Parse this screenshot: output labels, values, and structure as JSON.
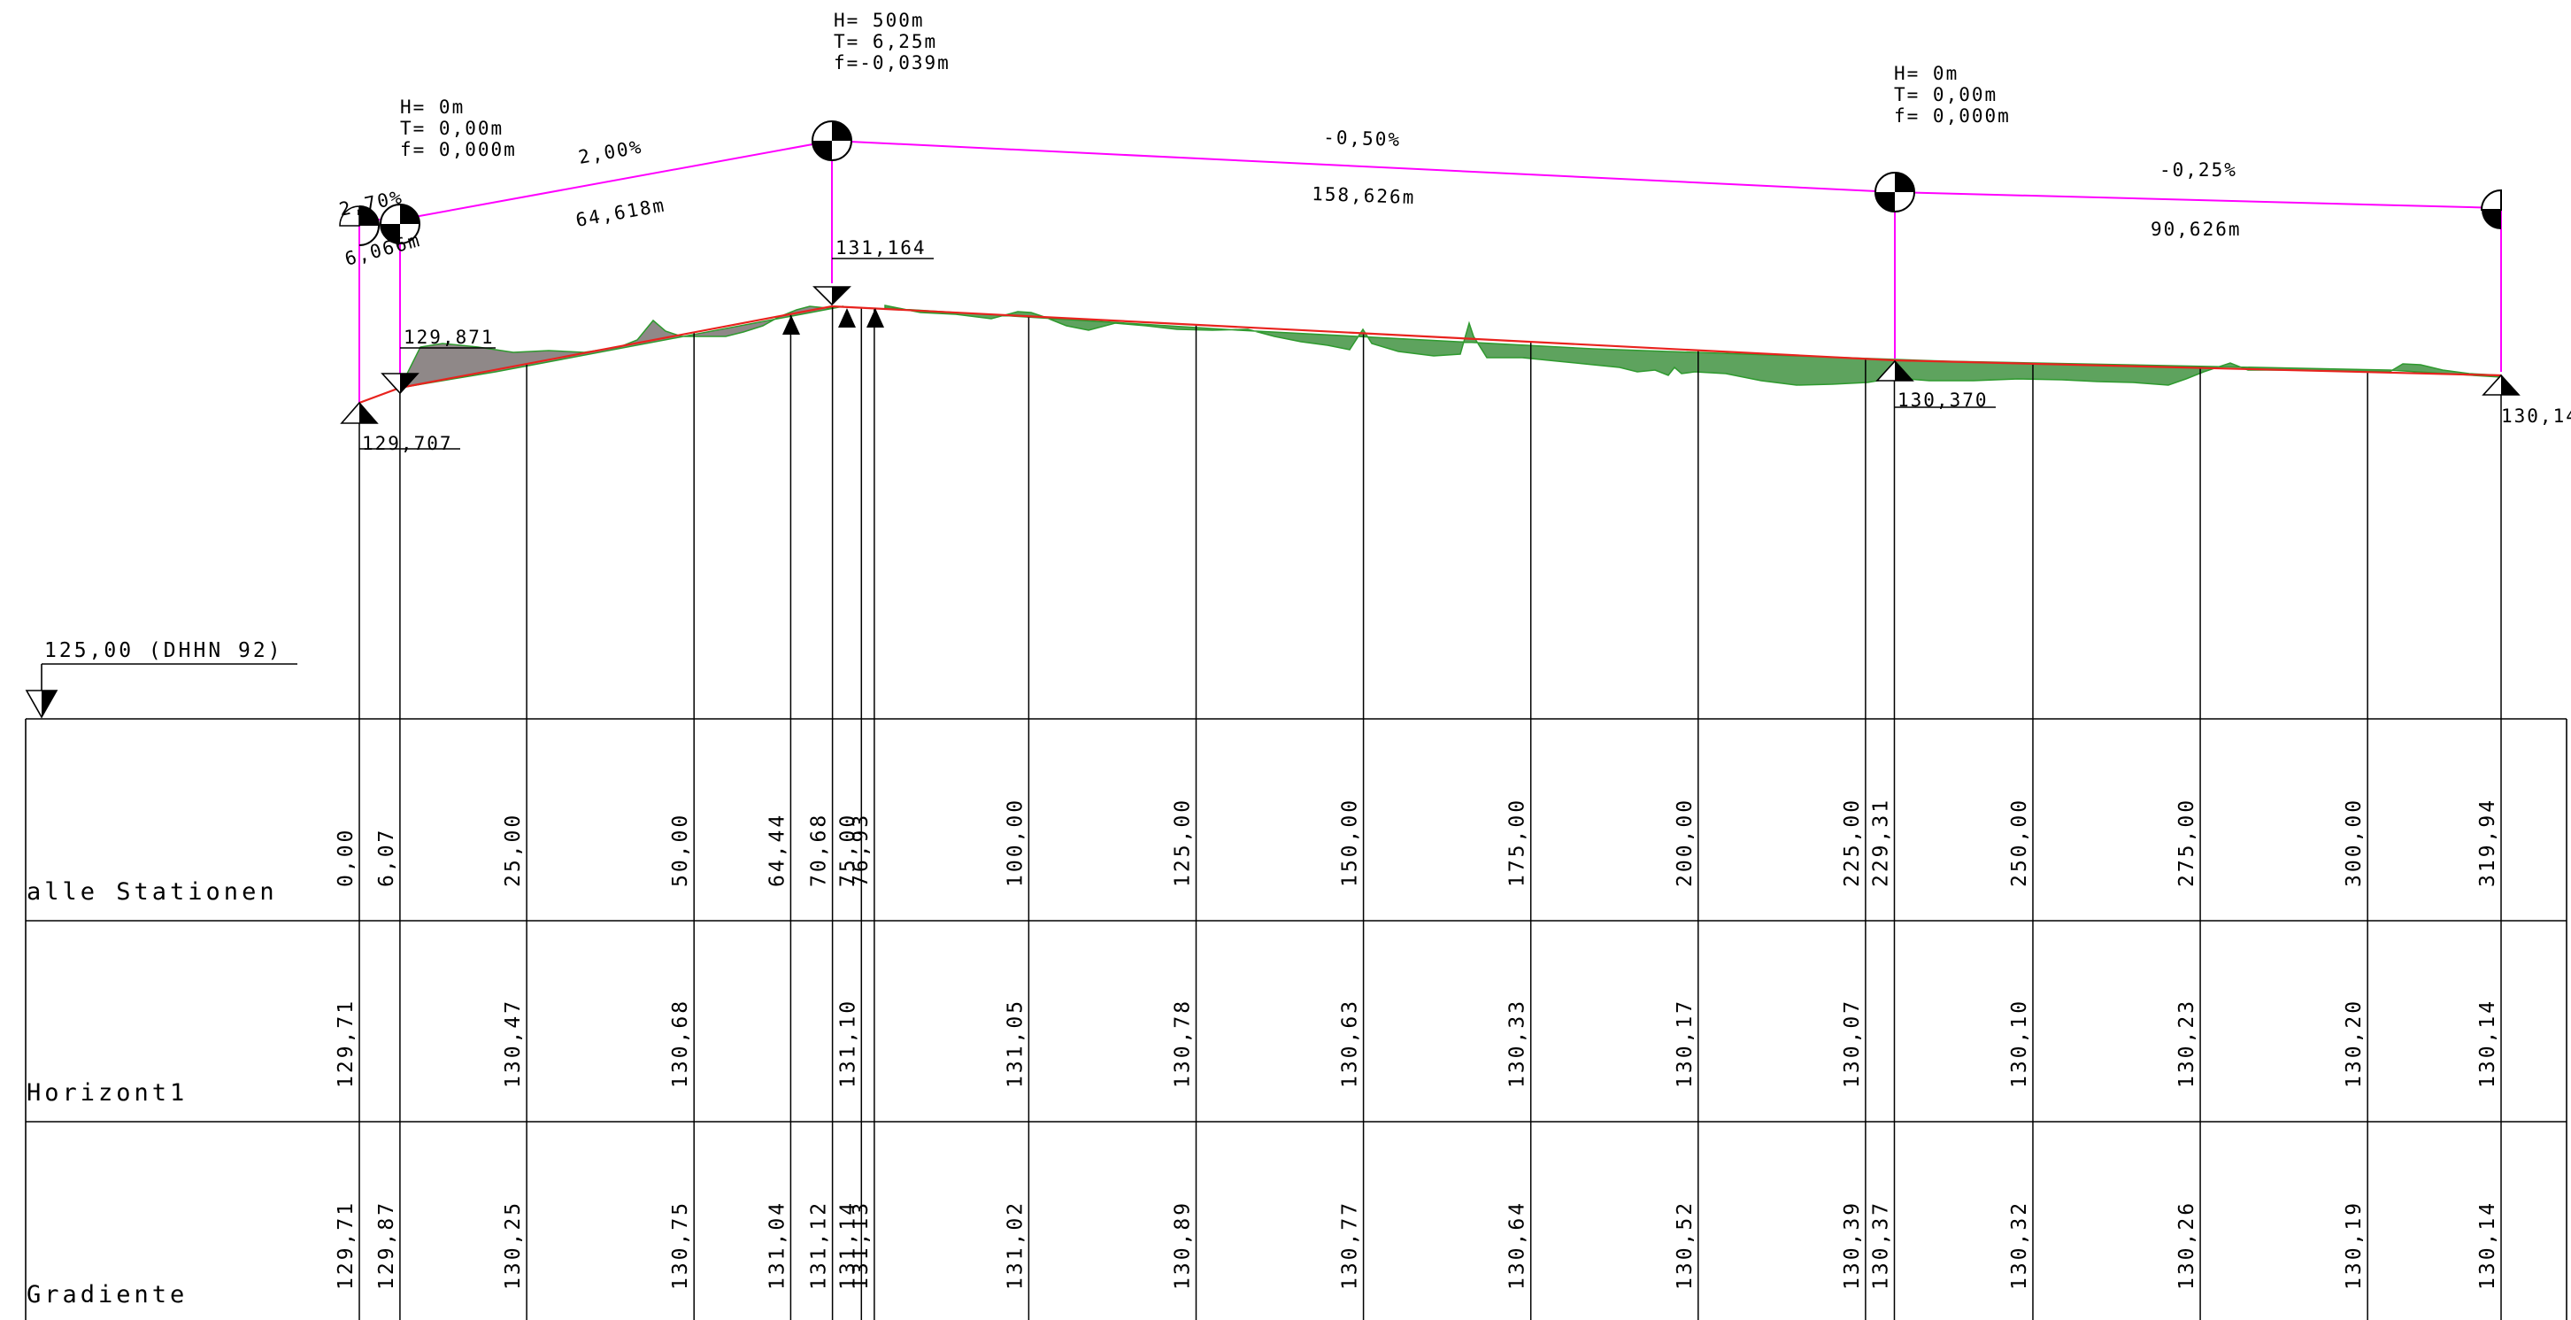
{
  "datum": {
    "label": "125,00 (DHHN 92)"
  },
  "rows": [
    {
      "key": "stations",
      "label": "alle Stationen"
    },
    {
      "key": "horizon",
      "label": "Horizont1"
    },
    {
      "key": "gradient",
      "label": "Gradiente"
    }
  ],
  "curves": [
    {
      "station": 6.07,
      "H": "H=     0m",
      "T": "T=  0,00m",
      "f": "f= 0,000m"
    },
    {
      "station": 70.68,
      "H": "H=   500m",
      "T": "T=  6,25m",
      "f": "f=-0,039m"
    },
    {
      "station": 229.31,
      "H": "H=     0m",
      "T": "T=  0,00m",
      "f": "f= 0,000m"
    }
  ],
  "segments": [
    {
      "slope": "2,70%",
      "length": "6,066m"
    },
    {
      "slope": "2,00%",
      "length": "64,618m"
    },
    {
      "slope": "-0,50%",
      "length": "158,626m"
    },
    {
      "slope": "-0,25%",
      "length": "90,626m"
    }
  ],
  "elevation_marks": [
    {
      "station": 0.0,
      "value": "129,707"
    },
    {
      "station": 6.07,
      "value": "129,871"
    },
    {
      "station": 75.0,
      "value": "131,164"
    },
    {
      "station": 229.31,
      "value": "130,370"
    },
    {
      "station": 319.94,
      "value": "130,14"
    }
  ],
  "columns": [
    {
      "station": 0.0,
      "label": "0,00",
      "horizon": "129,71",
      "gradient": "129,71"
    },
    {
      "station": 6.07,
      "label": "6,07",
      "horizon": "",
      "gradient": "129,87"
    },
    {
      "station": 25.0,
      "label": "25,00",
      "horizon": "130,47",
      "gradient": "130,25"
    },
    {
      "station": 50.0,
      "label": "50,00",
      "horizon": "130,68",
      "gradient": "130,75"
    },
    {
      "station": 64.44,
      "label": "64,44",
      "horizon": "",
      "gradient": "131,04"
    },
    {
      "station": 70.68,
      "label": "70,68",
      "horizon": "",
      "gradient": "131,12"
    },
    {
      "station": 75.0,
      "label": "75,00",
      "horizon": "131,10",
      "gradient": "131,14"
    },
    {
      "station": 76.93,
      "label": "76,93",
      "horizon": "",
      "gradient": "131,13"
    },
    {
      "station": 100.0,
      "label": "100,00",
      "horizon": "131,05",
      "gradient": "131,02"
    },
    {
      "station": 125.0,
      "label": "125,00",
      "horizon": "130,78",
      "gradient": "130,89"
    },
    {
      "station": 150.0,
      "label": "150,00",
      "horizon": "130,63",
      "gradient": "130,77"
    },
    {
      "station": 175.0,
      "label": "175,00",
      "horizon": "130,33",
      "gradient": "130,64"
    },
    {
      "station": 200.0,
      "label": "200,00",
      "horizon": "130,17",
      "gradient": "130,52"
    },
    {
      "station": 225.0,
      "label": "225,00",
      "horizon": "130,07",
      "gradient": "130,39"
    },
    {
      "station": 229.31,
      "label": "229,31",
      "horizon": "",
      "gradient": "130,37"
    },
    {
      "station": 250.0,
      "label": "250,00",
      "horizon": "130,10",
      "gradient": "130,32"
    },
    {
      "station": 275.0,
      "label": "275,00",
      "horizon": "130,23",
      "gradient": "130,26"
    },
    {
      "station": 300.0,
      "label": "300,00",
      "horizon": "130,20",
      "gradient": "130,19"
    },
    {
      "station": 319.94,
      "label": "319,94",
      "horizon": "130,14",
      "gradient": "130,14"
    }
  ],
  "colors": {
    "tangent": "#ff00ff",
    "gradient_line": "#e8231e",
    "cut_fill": "#5ea35e",
    "embankment_fill": "#8f8888",
    "terrain_outline": "#2e9a2e"
  }
}
